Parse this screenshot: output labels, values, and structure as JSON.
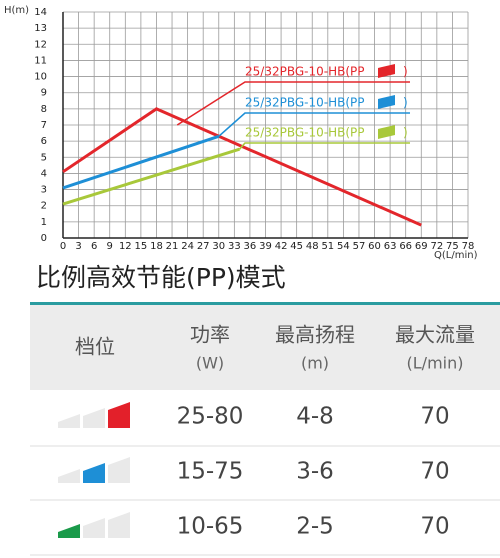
{
  "chart_data": {
    "type": "line",
    "y_label": "H(m)",
    "x_label": "Q(L/min)",
    "xlim": [
      0,
      78
    ],
    "ylim": [
      0,
      14
    ],
    "xticks": [
      0,
      3,
      6,
      9,
      12,
      15,
      18,
      21,
      24,
      27,
      30,
      33,
      36,
      39,
      42,
      45,
      48,
      51,
      54,
      57,
      60,
      63,
      66,
      69,
      72,
      75,
      78
    ],
    "yticks": [
      0,
      1,
      2,
      3,
      4,
      5,
      6,
      7,
      8,
      9,
      10,
      11,
      12,
      13,
      14
    ],
    "grid": true,
    "series": [
      {
        "name": "25/32PBG-10-HB(PP",
        "suffix": ")",
        "color": "#e3262b",
        "x": [
          0,
          18,
          69
        ],
        "values": [
          4.1,
          8,
          0.8
        ]
      },
      {
        "name": "25/32PBG-10-HB(PP",
        "suffix": ")",
        "color": "#1e8fd6",
        "x": [
          0,
          30
        ],
        "values": [
          3.1,
          6.3
        ]
      },
      {
        "name": "25/32PBG-10-HB(PP",
        "suffix": ")",
        "color": "#a8c83a",
        "x": [
          0,
          34
        ],
        "values": [
          2.1,
          5.5
        ]
      }
    ]
  },
  "table": {
    "title": "比例高效节能(PP)模式",
    "header": [
      {
        "label": "档位"
      },
      {
        "label": "功率",
        "unit": "(W)"
      },
      {
        "label": "最高扬程",
        "unit": "(m)"
      },
      {
        "label": "最大流量",
        "unit": "(L/min)"
      }
    ],
    "rows": [
      {
        "level": 3,
        "color": "#e3202a",
        "cells": [
          "25-80",
          "4-8",
          "70"
        ]
      },
      {
        "level": 2,
        "color": "#1e8fd6",
        "cells": [
          "15-75",
          "3-6",
          "70"
        ]
      },
      {
        "level": 1,
        "color": "#1a9a4a",
        "cells": [
          "10-65",
          "2-5",
          "70"
        ]
      }
    ]
  }
}
